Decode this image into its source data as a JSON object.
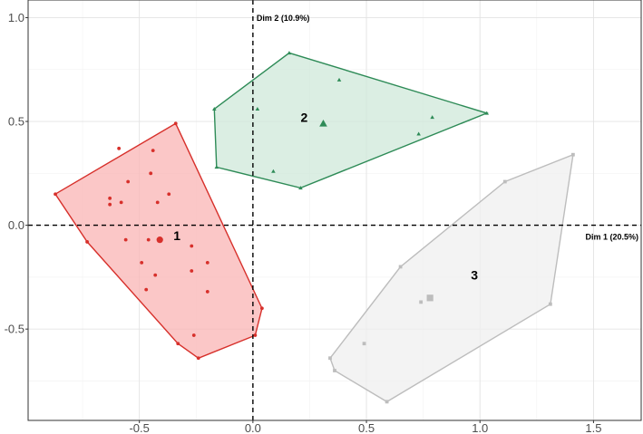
{
  "chart_data": {
    "type": "scatter",
    "title": "",
    "xlabel": "Dim 1 (20.5%)",
    "ylabel": "Dim 2 (10.9%)",
    "xlim": [
      -0.99,
      1.71
    ],
    "ylim": [
      -0.94,
      1.085
    ],
    "xticks": [
      -0.5,
      0.0,
      0.5,
      1.0,
      1.5
    ],
    "xtick_labels": [
      "-0.5",
      "0.0",
      "0.5",
      "1.0",
      "1.5"
    ],
    "yticks": [
      -0.5,
      0.0,
      0.5,
      1.0
    ],
    "ytick_labels": [
      "-0.5",
      "0.0",
      "0.5",
      "1.0"
    ],
    "grid": true,
    "reference_lines": {
      "x": 0,
      "y": 0
    },
    "clusters": [
      {
        "label": "1",
        "shape": "circle",
        "color": "#d7302b",
        "fill": "#f9b4b4",
        "centroid": [
          -0.41,
          -0.07
        ],
        "label_pos": [
          -0.35,
          -0.05
        ],
        "hull": [
          [
            -0.87,
            0.15
          ],
          [
            -0.34,
            0.49
          ],
          [
            0.04,
            -0.4
          ],
          [
            0.01,
            -0.53
          ],
          [
            -0.24,
            -0.64
          ],
          [
            -0.33,
            -0.57
          ],
          [
            -0.73,
            -0.08
          ]
        ],
        "points": [
          [
            -0.59,
            0.37
          ],
          [
            -0.44,
            0.36
          ],
          [
            -0.45,
            0.25
          ],
          [
            -0.55,
            0.21
          ],
          [
            -0.37,
            0.15
          ],
          [
            -0.63,
            0.13
          ],
          [
            -0.58,
            0.11
          ],
          [
            -0.63,
            0.1
          ],
          [
            -0.42,
            0.11
          ],
          [
            -0.56,
            -0.07
          ],
          [
            -0.46,
            -0.07
          ],
          [
            -0.27,
            -0.1
          ],
          [
            -0.49,
            -0.18
          ],
          [
            -0.2,
            -0.18
          ],
          [
            -0.43,
            -0.24
          ],
          [
            -0.27,
            -0.22
          ],
          [
            -0.47,
            -0.31
          ],
          [
            -0.2,
            -0.32
          ],
          [
            -0.26,
            -0.53
          ]
        ]
      },
      {
        "label": "2",
        "shape": "triangle",
        "color": "#2e8b57",
        "fill": "#cfe8da",
        "centroid": [
          0.31,
          0.49
        ],
        "label_pos": [
          0.21,
          0.52
        ],
        "hull": [
          [
            -0.17,
            0.56
          ],
          [
            0.16,
            0.83
          ],
          [
            1.03,
            0.54
          ],
          [
            0.21,
            0.18
          ],
          [
            -0.16,
            0.28
          ]
        ],
        "points": [
          [
            0.38,
            0.7
          ],
          [
            0.02,
            0.56
          ],
          [
            0.79,
            0.52
          ],
          [
            0.73,
            0.44
          ],
          [
            0.09,
            0.26
          ]
        ]
      },
      {
        "label": "3",
        "shape": "square",
        "color": "#bdbdbd",
        "fill": "#efefef",
        "centroid": [
          0.78,
          -0.35
        ],
        "label_pos": [
          0.96,
          -0.24
        ],
        "hull": [
          [
            0.65,
            -0.2
          ],
          [
            1.11,
            0.21
          ],
          [
            1.41,
            0.34
          ],
          [
            1.31,
            -0.38
          ],
          [
            0.59,
            -0.85
          ],
          [
            0.36,
            -0.7
          ],
          [
            0.34,
            -0.64
          ]
        ],
        "points": [
          [
            0.74,
            -0.37
          ],
          [
            0.49,
            -0.57
          ]
        ]
      }
    ]
  }
}
